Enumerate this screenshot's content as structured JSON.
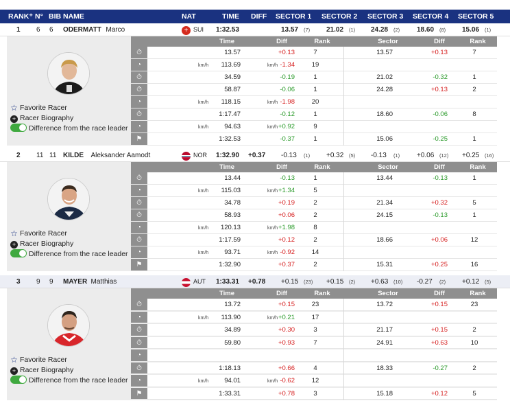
{
  "header": {
    "rank": "RANK⁺",
    "no": "N°",
    "bib": "BIB",
    "name": "NAME",
    "nat": "NAT",
    "time": "TIME",
    "diff": "DIFF",
    "s1": "SECTOR 1",
    "s2": "SECTOR 2",
    "s3": "SECTOR 3",
    "s4": "SECTOR 4",
    "s5": "SECTOR 5"
  },
  "subheader": {
    "time": "Time",
    "diff": "Diff",
    "rank": "Rank",
    "sector": "Sector",
    "diff2": "Diff",
    "rank2": "Rank"
  },
  "links": {
    "favorite": "Favorite Racer",
    "biography": "Racer Biography",
    "difference": "Difference from the race leader"
  },
  "unit": "km/h",
  "racers": [
    {
      "rank": "1",
      "no": "6",
      "bib": "6",
      "last": "ODERMATT",
      "first": "Marco",
      "nat": "SUI",
      "flag_color": "#d52b1e",
      "time": "1:32.53",
      "diff": "",
      "sectors": [
        {
          "v": "13.57",
          "r": "(7)"
        },
        {
          "v": "21.02",
          "r": "(1)"
        },
        {
          "v": "24.28",
          "r": "(2)"
        },
        {
          "v": "18.60",
          "r": "(8)"
        },
        {
          "v": "15.06",
          "r": "(1)"
        }
      ],
      "rows": [
        {
          "icon": "stopwatch",
          "time": "13.57",
          "diff": "+0.13",
          "dc": "red",
          "rank": "7",
          "sector": "13.57",
          "sdiff": "+0.13",
          "sdc": "red",
          "srank": "7"
        },
        {
          "icon": "speed",
          "time": "113.69",
          "speed": true,
          "diff": "-1.34",
          "dspeed": true,
          "dc": "red",
          "rank": "19",
          "sector": "",
          "sdiff": "",
          "sdc": "",
          "srank": ""
        },
        {
          "icon": "stopwatch",
          "time": "34.59",
          "diff": "-0.19",
          "dc": "grn",
          "rank": "1",
          "sector": "21.02",
          "sdiff": "-0.32",
          "sdc": "grn",
          "srank": "1"
        },
        {
          "icon": "stopwatch",
          "time": "58.87",
          "diff": "-0.06",
          "dc": "grn",
          "rank": "1",
          "sector": "24.28",
          "sdiff": "+0.13",
          "sdc": "red",
          "srank": "2"
        },
        {
          "icon": "speed",
          "time": "118.15",
          "speed": true,
          "diff": "-1.98",
          "dspeed": true,
          "dc": "red",
          "rank": "20",
          "sector": "",
          "sdiff": "",
          "sdc": "",
          "srank": ""
        },
        {
          "icon": "stopwatch",
          "time": "1:17.47",
          "diff": "-0.12",
          "dc": "grn",
          "rank": "1",
          "sector": "18.60",
          "sdiff": "-0.06",
          "sdc": "grn",
          "srank": "8"
        },
        {
          "icon": "speed",
          "time": "94.63",
          "speed": true,
          "diff": "+0.92",
          "dspeed": true,
          "dc": "grn",
          "rank": "9",
          "sector": "",
          "sdiff": "",
          "sdc": "",
          "srank": ""
        },
        {
          "icon": "flag",
          "time": "1:32.53",
          "diff": "-0.37",
          "dc": "grn",
          "rank": "1",
          "sector": "15.06",
          "sdiff": "-0.25",
          "sdc": "grn",
          "srank": "1"
        }
      ]
    },
    {
      "rank": "2",
      "no": "11",
      "bib": "11",
      "last": "KILDE",
      "first": "Aleksander Aamodt",
      "nat": "NOR",
      "flag_color": "#ba0c2f",
      "time": "1:32.90",
      "diff": "+0.37",
      "sectors": [
        {
          "v": "-0.13",
          "r": "(1)"
        },
        {
          "v": "+0.32",
          "r": "(5)"
        },
        {
          "v": "-0.13",
          "r": "(1)"
        },
        {
          "v": "+0.06",
          "r": "(12)"
        },
        {
          "v": "+0.25",
          "r": "(16)"
        }
      ],
      "rows": [
        {
          "icon": "stopwatch",
          "time": "13.44",
          "diff": "-0.13",
          "dc": "grn",
          "rank": "1",
          "sector": "13.44",
          "sdiff": "-0.13",
          "sdc": "grn",
          "srank": "1"
        },
        {
          "icon": "speed",
          "time": "115.03",
          "speed": true,
          "diff": "+1.34",
          "dspeed": true,
          "dc": "grn",
          "rank": "5",
          "sector": "",
          "sdiff": "",
          "sdc": "",
          "srank": ""
        },
        {
          "icon": "stopwatch",
          "time": "34.78",
          "diff": "+0.19",
          "dc": "red",
          "rank": "2",
          "sector": "21.34",
          "sdiff": "+0.32",
          "sdc": "red",
          "srank": "5"
        },
        {
          "icon": "stopwatch",
          "time": "58.93",
          "diff": "+0.06",
          "dc": "red",
          "rank": "2",
          "sector": "24.15",
          "sdiff": "-0.13",
          "sdc": "grn",
          "srank": "1"
        },
        {
          "icon": "speed",
          "time": "120.13",
          "speed": true,
          "diff": "+1.98",
          "dspeed": true,
          "dc": "grn",
          "rank": "8",
          "sector": "",
          "sdiff": "",
          "sdc": "",
          "srank": ""
        },
        {
          "icon": "stopwatch",
          "time": "1:17.59",
          "diff": "+0.12",
          "dc": "red",
          "rank": "2",
          "sector": "18.66",
          "sdiff": "+0.06",
          "sdc": "red",
          "srank": "12"
        },
        {
          "icon": "speed",
          "time": "93.71",
          "speed": true,
          "diff": "-0.92",
          "dspeed": true,
          "dc": "red",
          "rank": "14",
          "sector": "",
          "sdiff": "",
          "sdc": "",
          "srank": ""
        },
        {
          "icon": "flag",
          "time": "1:32.90",
          "diff": "+0.37",
          "dc": "red",
          "rank": "2",
          "sector": "15.31",
          "sdiff": "+0.25",
          "sdc": "red",
          "srank": "16"
        }
      ]
    },
    {
      "rank": "3",
      "no": "9",
      "bib": "9",
      "last": "MAYER",
      "first": "Matthias",
      "nat": "AUT",
      "flag_color": "#c8102e",
      "time": "1:33.31",
      "diff": "+0.78",
      "sectors": [
        {
          "v": "+0.15",
          "r": "(23)"
        },
        {
          "v": "+0.15",
          "r": "(2)"
        },
        {
          "v": "+0.63",
          "r": "(10)"
        },
        {
          "v": "-0.27",
          "r": "(2)"
        },
        {
          "v": "+0.12",
          "r": "(5)"
        }
      ],
      "rows": [
        {
          "icon": "stopwatch",
          "time": "13.72",
          "diff": "+0.15",
          "dc": "red",
          "rank": "23",
          "sector": "13.72",
          "sdiff": "+0.15",
          "sdc": "red",
          "srank": "23"
        },
        {
          "icon": "speed",
          "time": "113.90",
          "speed": true,
          "diff": "+0.21",
          "dspeed": true,
          "dc": "grn",
          "rank": "17",
          "sector": "",
          "sdiff": "",
          "sdc": "",
          "srank": ""
        },
        {
          "icon": "stopwatch",
          "time": "34.89",
          "diff": "+0.30",
          "dc": "red",
          "rank": "3",
          "sector": "21.17",
          "sdiff": "+0.15",
          "sdc": "red",
          "srank": "2"
        },
        {
          "icon": "stopwatch",
          "time": "59.80",
          "diff": "+0.93",
          "dc": "red",
          "rank": "7",
          "sector": "24.91",
          "sdiff": "+0.63",
          "sdc": "red",
          "srank": "10"
        },
        {
          "icon": "speed",
          "time": "",
          "diff": "",
          "dc": "",
          "rank": "",
          "sector": "",
          "sdiff": "",
          "sdc": "",
          "srank": ""
        },
        {
          "icon": "stopwatch",
          "time": "1:18.13",
          "diff": "+0.66",
          "dc": "red",
          "rank": "4",
          "sector": "18.33",
          "sdiff": "-0.27",
          "sdc": "grn",
          "srank": "2"
        },
        {
          "icon": "speed",
          "time": "94.01",
          "speed": true,
          "diff": "-0.62",
          "dspeed": true,
          "dc": "red",
          "rank": "12",
          "sector": "",
          "sdiff": "",
          "sdc": "",
          "srank": ""
        },
        {
          "icon": "flag",
          "time": "1:33.31",
          "diff": "+0.78",
          "dc": "red",
          "rank": "3",
          "sector": "15.18",
          "sdiff": "+0.12",
          "sdc": "red",
          "srank": "5"
        }
      ]
    }
  ],
  "colors": {
    "header": "#1a3280",
    "positive": "#2a9a2a",
    "negative": "#d62020",
    "panel": "#ececec"
  }
}
